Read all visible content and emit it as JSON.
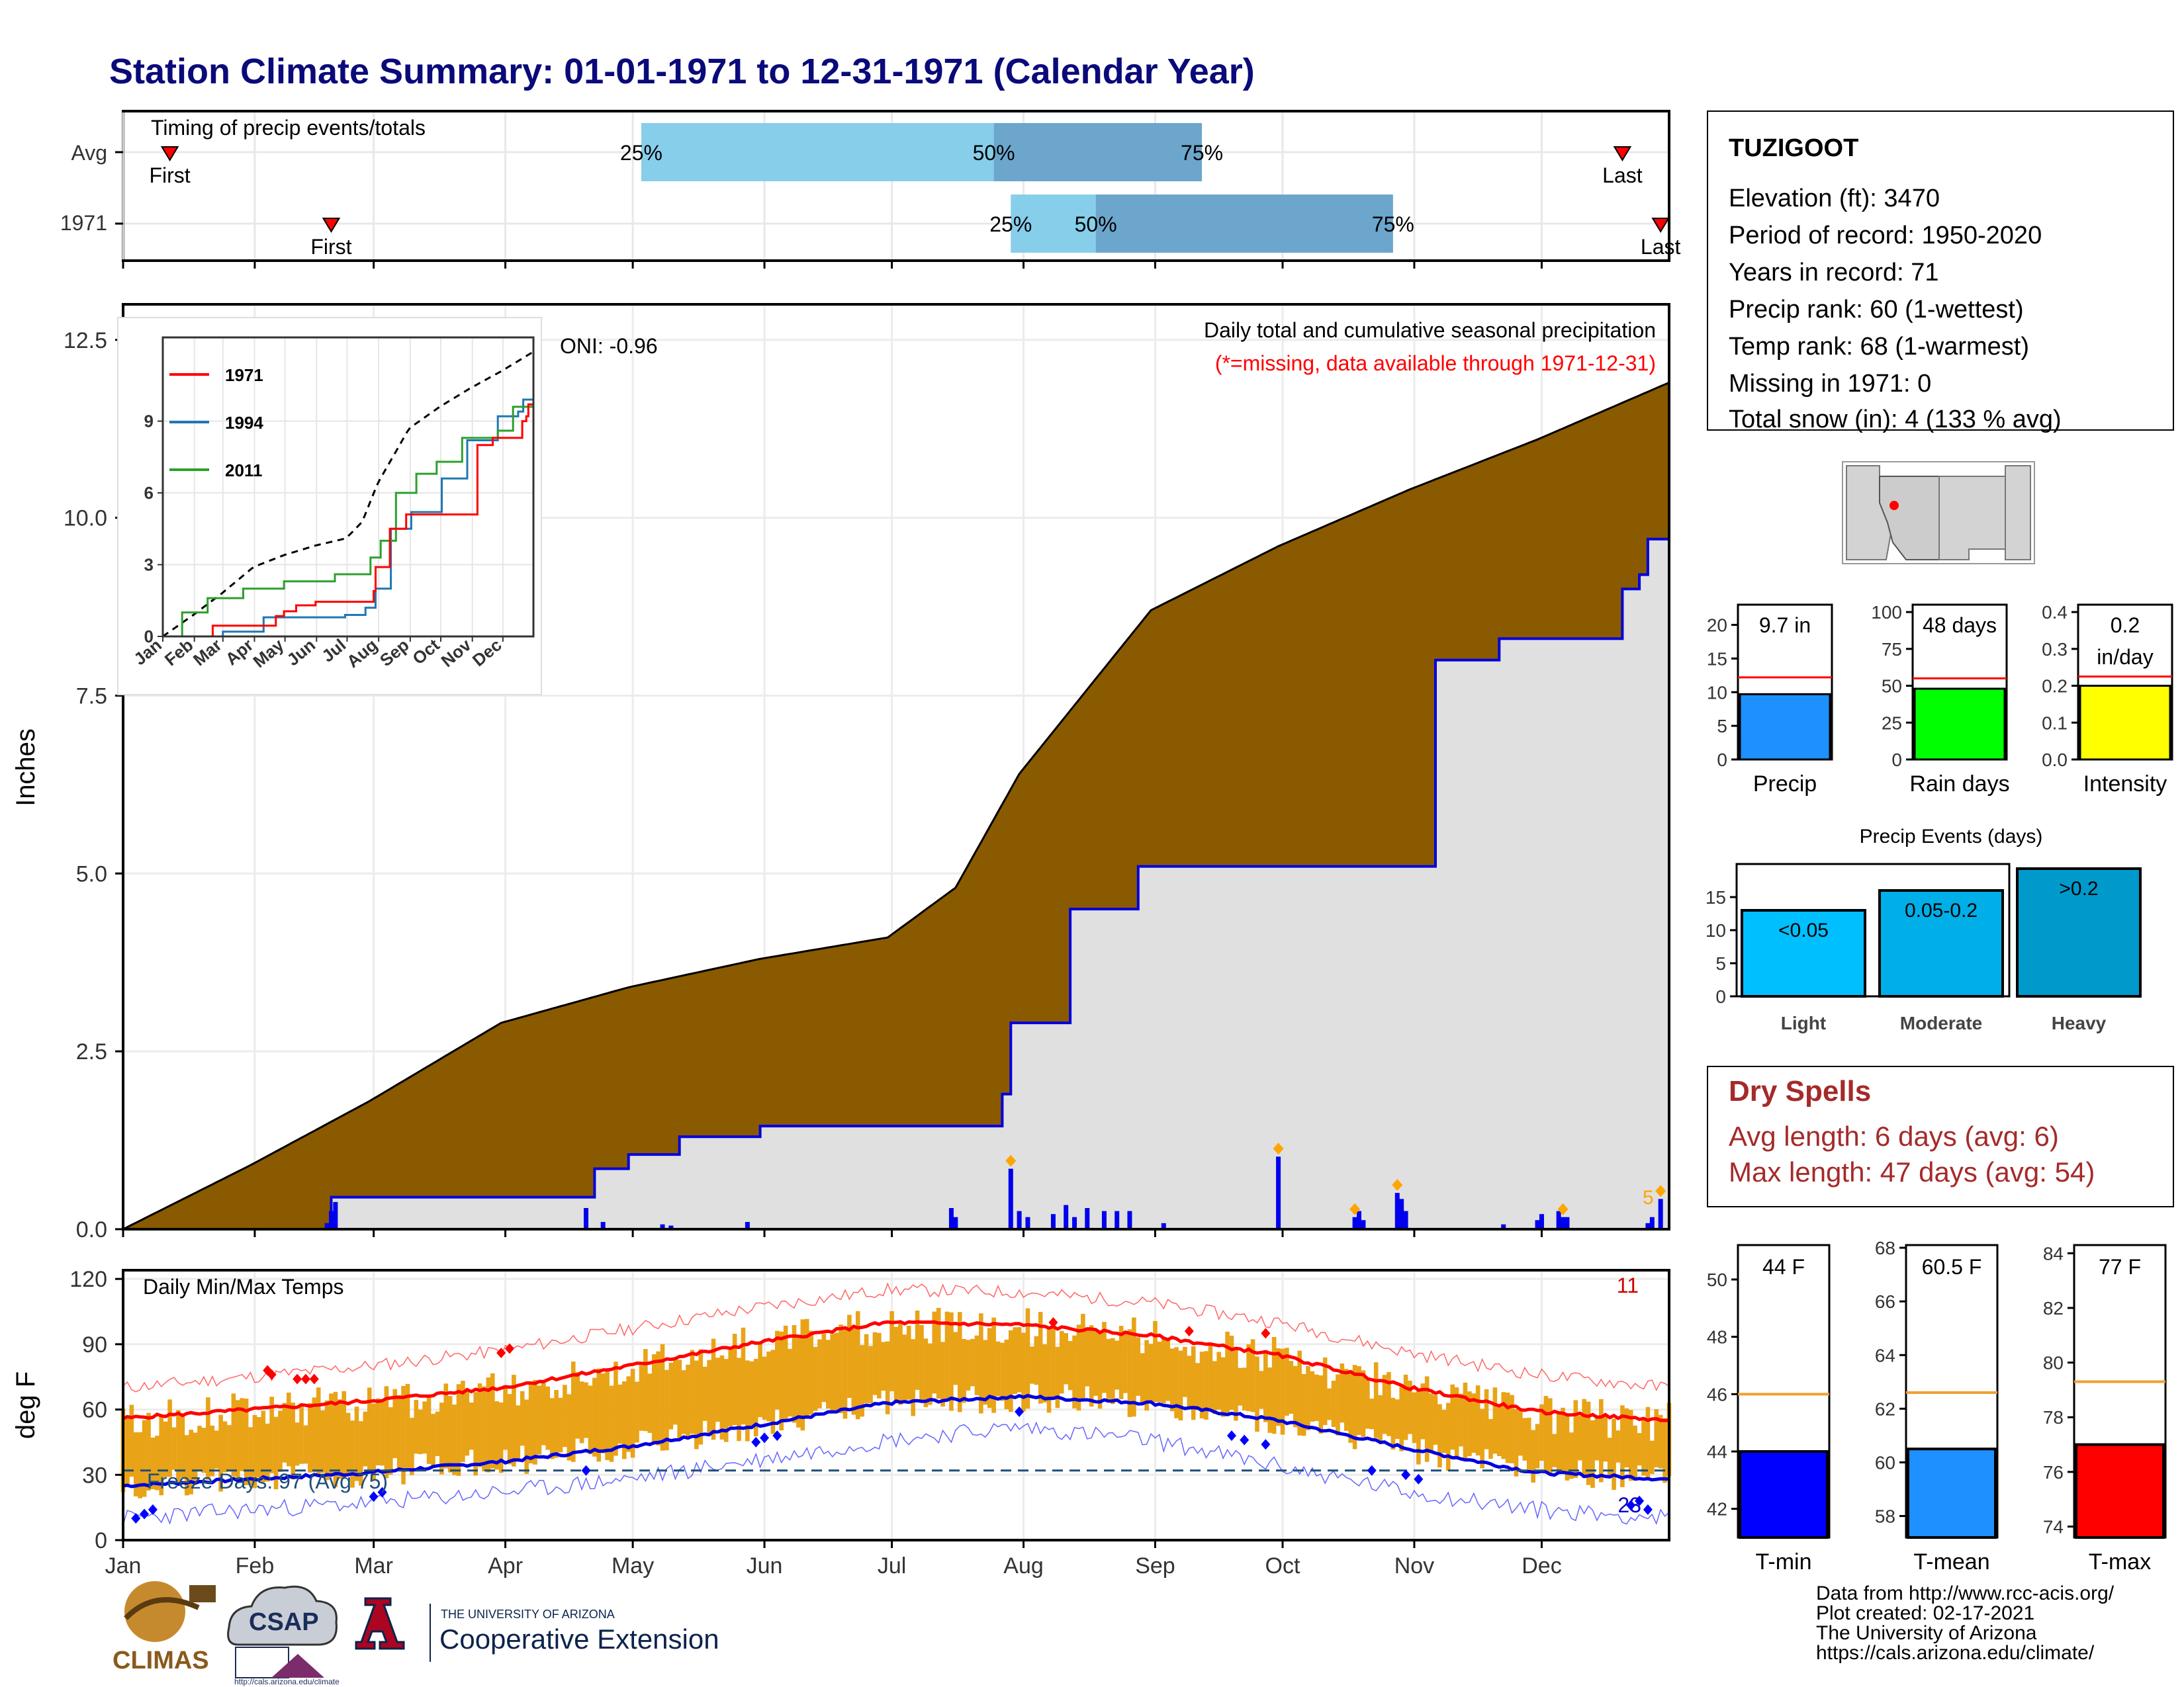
{
  "title": "Station Climate Summary: 01-01-1971 to 12-31-1971 (Calendar Year)",
  "station": {
    "name": "TUZIGOOT",
    "lines": [
      "Elevation (ft): 3470",
      "Period of record: 1950-2020",
      "Years in record: 71",
      "Precip rank: 60 (1-wettest)",
      "Temp rank: 68 (1-warmest)",
      "Missing in 1971: 0",
      "Total snow (in): 4 (133 % avg)"
    ]
  },
  "colors": {
    "title": "#0a0a7a",
    "cumulative_fill": "#8a5a00",
    "grey_fill": "#e0e0e0",
    "precip_bars": "#0000ee",
    "timing_light": "#87ceeb",
    "timing_dark": "#6ca6cd",
    "temp_bars": "#e8a317",
    "tmax_line": "#ff0000",
    "tmin_line": "#0000dd",
    "dry_spells": "#a52a2a",
    "red_text": "#ff0000"
  },
  "timing": {
    "label": "Timing of precip events/totals",
    "rows": [
      {
        "label": "Avg",
        "first_day": 12,
        "q25_day": 123,
        "q50_day": 206,
        "q75_day": 255,
        "last_day": 354,
        "first_label": "First",
        "last_label": "Last",
        "q25_label": "25%",
        "q50_label": "50%",
        "q75_label": "75%"
      },
      {
        "label": "1971",
        "first_day": 50,
        "q25_day": 210,
        "q50_day": 230,
        "q75_day": 300,
        "last_day": 363,
        "first_label": "First",
        "last_label": "Last",
        "q25_label": "25%",
        "q50_label": "50%",
        "q75_label": "75%"
      }
    ]
  },
  "precip_panel": {
    "ylabel": "Inches",
    "caption": "Daily total and cumulative seasonal precipitation",
    "missing_note": "(*=missing, data available through 1971-12-31)",
    "oni": "ONI: -0.96",
    "y_ticks": [
      "0.0",
      "2.5",
      "5.0",
      "7.5",
      "10.0",
      "12.5"
    ],
    "ylim": [
      0,
      13.0
    ],
    "corner_count": "5"
  },
  "inset": {
    "legend": [
      "1971",
      "1994",
      "2011"
    ],
    "legend_colors": [
      "#ff0000",
      "#1f77b4",
      "#2ca02c"
    ],
    "y_ticks": [
      "0",
      "3",
      "6",
      "9"
    ],
    "x_ticks": [
      "Jan",
      "Feb",
      "Mar",
      "Apr",
      "May",
      "Jun",
      "Jul",
      "Aug",
      "Sep",
      "Oct",
      "Nov",
      "Dec"
    ]
  },
  "temp_panel": {
    "ylabel": "deg F",
    "title": "Daily Min/Max Temps",
    "freeze": "Freeze Days: 97 (Avg 75)",
    "top_count": "11",
    "bottom_count": "23",
    "y_ticks": [
      "0",
      "30",
      "60",
      "90",
      "120"
    ],
    "ylim": [
      0,
      124
    ],
    "freeze_line": 32
  },
  "months": [
    "Jan",
    "Feb",
    "Mar",
    "Apr",
    "May",
    "Jun",
    "Jul",
    "Aug",
    "Sep",
    "Oct",
    "Nov",
    "Dec"
  ],
  "summary_bars": [
    {
      "label": "Precip",
      "value_text": "9.7 in",
      "value": 9.7,
      "avg": 12.2,
      "ymax": 23,
      "ticks": [
        "0",
        "5",
        "10",
        "15",
        "20"
      ],
      "color": "#1e90ff"
    },
    {
      "label": "Rain days",
      "value_text": "48 days",
      "value": 48,
      "avg": 55,
      "ymax": 105,
      "ticks": [
        "0",
        "25",
        "50",
        "75",
        "100"
      ],
      "color": "#00ff00"
    },
    {
      "label": "Intensity",
      "value_text": "0.2\nin/day",
      "value": 0.2,
      "avg": 0.225,
      "ymax": 0.42,
      "ticks": [
        "0.0",
        "0.1",
        "0.2",
        "0.3",
        "0.4"
      ],
      "color": "#ffff00"
    }
  ],
  "precip_events": {
    "title": "Precip Events (days)",
    "ticks": [
      "0",
      "5",
      "10",
      "15"
    ],
    "ymax": 20,
    "bars": [
      {
        "label": "Light",
        "inner": "<0.05",
        "value": 13,
        "color": "#00bfff"
      },
      {
        "label": "Moderate",
        "inner": "0.05-0.2",
        "value": 16,
        "color": "#00aee8"
      },
      {
        "label": "Heavy",
        "inner": ">0.2",
        "value": 19.3,
        "color": "#0099cc"
      }
    ]
  },
  "dry_spells": {
    "title": "Dry Spells",
    "avg_line": "Avg length: 6 days (avg: 6)",
    "max_line": "Max length: 47 days (avg: 54)"
  },
  "temp_bars": [
    {
      "label": "T-min",
      "value_text": "44 F",
      "value": 44,
      "avg": 46,
      "ymin": 41,
      "ymax": 51.2,
      "ticks": [
        "42",
        "44",
        "46",
        "48",
        "50"
      ],
      "color": "#0000ff"
    },
    {
      "label": "T-mean",
      "value_text": "60.5 F",
      "value": 60.5,
      "avg": 62.6,
      "ymin": 57.2,
      "ymax": 68.1,
      "ticks": [
        "58",
        "60",
        "62",
        "64",
        "66",
        "68"
      ],
      "color": "#1e90ff"
    },
    {
      "label": "T-max",
      "value_text": "77 F",
      "value": 77,
      "avg": 79.3,
      "ymin": 73.6,
      "ymax": 84.3,
      "ticks": [
        "74",
        "76",
        "78",
        "80",
        "82",
        "84"
      ],
      "color": "#ff0000"
    }
  ],
  "footer": {
    "lines": [
      "Data from http://www.rcc-acis.org/",
      "Plot created: 02-17-2021",
      "The University of Arizona",
      "https://cals.arizona.edu/climate/"
    ],
    "logo_climas": "CLIMAS",
    "logo_csap": "CSAP",
    "logo_csap_url": "http://cals.arizona.edu/climate",
    "ua_small": "THE UNIVERSITY OF ARIZONA",
    "ua_big": "Cooperative Extension"
  },
  "chart_data": [
    {
      "type": "area",
      "title": "Daily total and cumulative seasonal precipitation",
      "ylabel": "Inches",
      "ylim": [
        0,
        13.0
      ],
      "series": [
        {
          "name": "",
          "x_day": [
            1,
            31,
            59,
            90,
            120,
            151,
            181,
            197,
            212,
            243,
            273,
            304,
            334,
            365
          ],
          "y": [
            0.0,
            0.9,
            1.8,
            2.9,
            3.4,
            3.8,
            4.1,
            4.8,
            6.4,
            8.7,
            9.6,
            10.4,
            11.1,
            11.9
          ]
        },
        {
          "name": "",
          "x_day": [
            1,
            49,
            50,
            110,
            112,
            120,
            132,
            151,
            193,
            208,
            210,
            224,
            240,
            290,
            310,
            325,
            354,
            358,
            360,
            365
          ],
          "y": [
            0.0,
            0.0,
            0.45,
            0.45,
            0.85,
            1.05,
            1.3,
            1.45,
            1.45,
            1.9,
            2.9,
            4.5,
            5.1,
            5.1,
            8.0,
            8.3,
            9.0,
            9.2,
            9.7,
            9.7
          ]
        }
      ],
      "daily_bars": {
        "day": [
          49,
          50,
          51,
          110,
          114,
          128,
          130,
          148,
          196,
          197,
          210,
          212,
          214,
          220,
          223,
          225,
          228,
          232,
          235,
          238,
          246,
          273,
          291,
          292,
          293,
          301,
          302,
          303,
          326,
          334,
          335,
          339,
          340,
          341,
          360,
          361,
          363
        ],
        "value": [
          0.1,
          0.3,
          0.45,
          0.35,
          0.12,
          0.08,
          0.06,
          0.12,
          0.35,
          0.2,
          1.0,
          0.3,
          0.2,
          0.25,
          0.4,
          0.2,
          0.35,
          0.3,
          0.3,
          0.3,
          0.1,
          1.2,
          0.2,
          0.3,
          0.15,
          0.6,
          0.5,
          0.3,
          0.08,
          0.15,
          0.25,
          0.3,
          0.2,
          0.2,
          0.1,
          0.2,
          0.5
        ],
        "record_markers_day": [
          210,
          273,
          291,
          301,
          340,
          363
        ]
      }
    },
    {
      "type": "line",
      "title": "Daily Min/Max Temps",
      "ylabel": "deg F",
      "ylim": [
        0,
        124
      ],
      "x_day": [
        1,
        31,
        59,
        90,
        120,
        151,
        181,
        212,
        243,
        273,
        304,
        334,
        365
      ],
      "series": [
        {
          "name": "",
          "values": [
            56,
            60,
            64,
            70,
            80,
            91,
            100,
            99,
            94,
            85,
            70,
            59,
            55
          ]
        },
        {
          "name": "",
          "values": [
            25,
            28,
            31,
            36,
            43,
            53,
            63,
            66,
            63,
            55,
            42,
            31,
            28
          ]
        },
        {
          "name": "",
          "values": [
            70,
            75,
            80,
            87,
            97,
            107,
            115,
            114,
            109,
            100,
            86,
            76,
            70
          ]
        },
        {
          "name": "",
          "values": [
            10,
            14,
            17,
            22,
            28,
            37,
            46,
            52,
            46,
            34,
            22,
            14,
            10
          ]
        }
      ],
      "freeze_line": 32
    }
  ]
}
